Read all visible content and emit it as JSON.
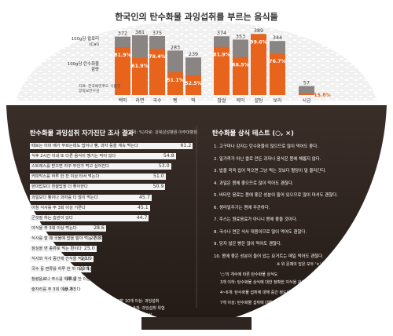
{
  "headline": "한국인의 탄수화물 과잉섭취를 부르는 음식들",
  "legend_kcal": "100g당 칼로리(Cal)",
  "legend_carb": "100g당 탄수화물 함량",
  "source": "자료: 한국패럿푸드 식품영양정보연구원",
  "chart_data": {
    "type": "bar",
    "categories": [
      "백미",
      "라면",
      "국수",
      "빵",
      "떡",
      "찹쌀",
      "케익",
      "설탕",
      "보리",
      "시금"
    ],
    "kcal": [
      372,
      381,
      375,
      283,
      239,
      374,
      353,
      389,
      344,
      57
    ],
    "carb_pct": [
      81.9,
      61.9,
      78.4,
      51.1,
      52.5,
      81.9,
      68.5,
      99.6,
      76.7,
      15.8
    ],
    "kcal_labels": [
      "372",
      "381",
      "375",
      "283",
      "239",
      "374",
      "353",
      "389",
      "344",
      "57"
    ],
    "carb_labels": [
      "81.9%",
      "61.9%",
      "78.4%",
      "51.1%",
      "52.5%",
      "81.9%",
      "68.5%",
      "99.6%",
      "76.7%",
      "15.8%"
    ],
    "ylim": [
      0,
      400
    ]
  },
  "survey": {
    "title": "탄수화물 과잉섭취 자가진단 조사 결과",
    "unit": "(단위: %)",
    "source": "자료: 강북삼성병원·아주대병원",
    "items": [
      {
        "label": "때로는 이미 배가 부르는데도 밥이나 빵, 과자 등을 계속 먹는다",
        "value": 61.2
      },
      {
        "label": "식후 2시간 이내 또 다른 음식이 땡기는 적이 있다",
        "value": 54.8
      },
      {
        "label": "스트레스를 받으면 자꾸 무언가 먹고 싶어진다",
        "value": 53.0
      },
      {
        "label": "커피믹스를 하루 한 잔 이상 타서 먹는다",
        "value": 51.0
      },
      {
        "label": "현미밥보다 흰쌀밥을 더 좋아한다",
        "value": 50.9
      },
      {
        "label": "과일보다 빵이나 과자를 더 많이 먹는다",
        "value": 45.7
      },
      {
        "label": "아침 식사를 주 3회 이상 거른다",
        "value": 45.1
      },
      {
        "label": "군것질 하는 습관이 있다",
        "value": 44.7
      },
      {
        "label": "야식을 주 3회 이상 먹는다",
        "value": 28.6
      },
      {
        "label": "식사를 할 때 국물에 밥을 말아 먹는 편이다",
        "value": 27.3
      },
      {
        "label": "점심을 면 종류로 먹는 편이다",
        "value": 25.0
      },
      {
        "label": "식사와 식사 중간에 간식을 먹는다",
        "value": 23.9
      },
      {
        "label": "국수 등 면류를 하루 한 끼 이상 먹는다",
        "value": 23.1
      },
      {
        "label": "청량음료나 주스를 하루 한 잔 이상 마신다",
        "value": 18.2
      },
      {
        "label": "술자리를 주 3회 이상 가진다",
        "value": 16.8
      }
    ],
    "value_labels": [
      "61.2",
      "54.8",
      "53.0",
      "51.0",
      "50.9",
      "45.7",
      "45.1",
      "44.7",
      "28.6",
      "27.3",
      "25.0",
      "23.9",
      "23.1",
      "18.2",
      "16.8"
    ],
    "footnote": "※여러분도 체크해 보세요.",
    "scale_1": "'예' 10개 이상: 과잉섭취",
    "scale_2": "5~9개: 과잉섭취 위험",
    "scale_3": "4개 이하: 안전"
  },
  "quiz": {
    "title": "탄수화물 상식 테스트",
    "title_mark": "(○, ×)",
    "items": [
      "1. 고구마나 감자는 탄수화물이 많으므로 많이 먹어도 좋다.",
      "2. 밀가루가 아닌 쌀로 만든 과자나 음식은 몸에 해롭지 않다.",
      "3. 밥을 꼭꼭 씹어 먹으면 그냥 먹는 것보다 혈당이 덜 올라간다.",
      "4. 과일은 몸에 좋으므로 많이 먹어도 괜찮다.",
      "5. 비타민 음료는 몸에 좋은 성분이 들어 있으므로 많이 마셔도 괜찮다.",
      "6. 생리일주기는 몸에 무관하다.",
      "7. 주스는 원료음료가 아니니 몸에 좋을 것이다.",
      "8. 국수나 면은 식사 대용이므로 많이 먹어도 괜찮다.",
      "9. 당지 않은 빵은 많이 먹어도 괜찮다.",
      "10. 몸에 좋은 성분이 들어 있는 요거트는 매일 먹어도 괜찮다."
    ],
    "answer_note": "※ 위 문제의 답은 모두 '×'",
    "score_title": "'○'의 개수에 따른 탄수화물 상식도",
    "score_1": "3개 이하: 탄수화물 상식에 대한 정확한 지식을 갖고 있다",
    "score_2": "4~6개: 탄수화물 섭취에 대해 중간 정도의 지식을 갖고 있다",
    "score_3": "7개 이상: 탄수화물 섭취에 대해 아주 잘못된 지식을 갖고 있다"
  }
}
